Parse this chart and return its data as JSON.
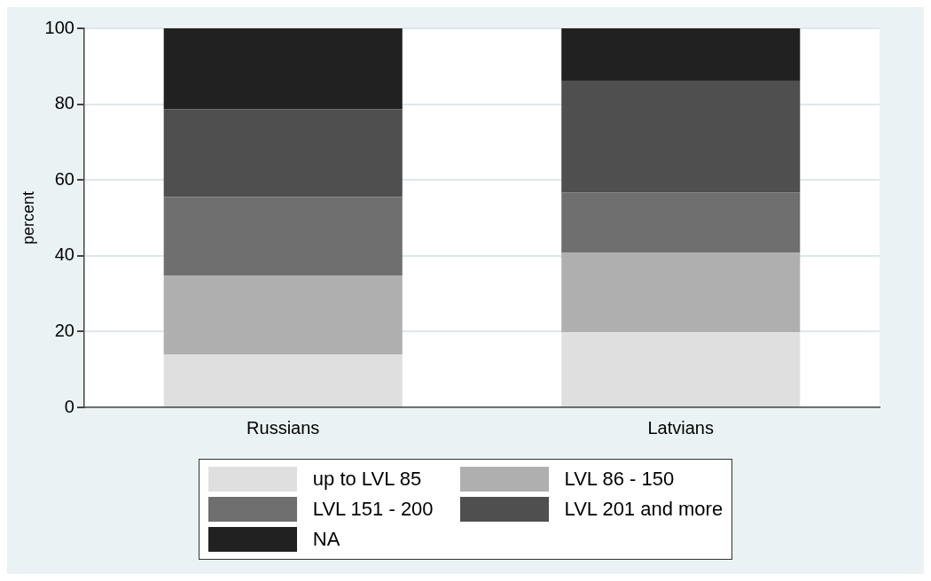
{
  "chart_data": {
    "type": "bar",
    "stacked": true,
    "ylabel": "percent",
    "categories": [
      "Russians",
      "Latvians"
    ],
    "series": [
      {
        "name": "up to LVL 85",
        "color": "#dfdfdf",
        "values": [
          13.9,
          19.8
        ]
      },
      {
        "name": "LVL 86 - 150",
        "color": "#afafaf",
        "values": [
          20.8,
          21.1
        ]
      },
      {
        "name": "LVL 151 - 200",
        "color": "#6f6f6f",
        "values": [
          20.8,
          15.8
        ]
      },
      {
        "name": "LVL 201 and more",
        "color": "#4f4f4f",
        "values": [
          23.1,
          29.5
        ]
      },
      {
        "name": "NA",
        "color": "#212121",
        "values": [
          21.4,
          13.8
        ]
      }
    ],
    "ylim": [
      0,
      100
    ],
    "yticks": [
      0,
      20,
      40,
      60,
      80,
      100
    ],
    "grid": "y",
    "legend": "bottom"
  }
}
